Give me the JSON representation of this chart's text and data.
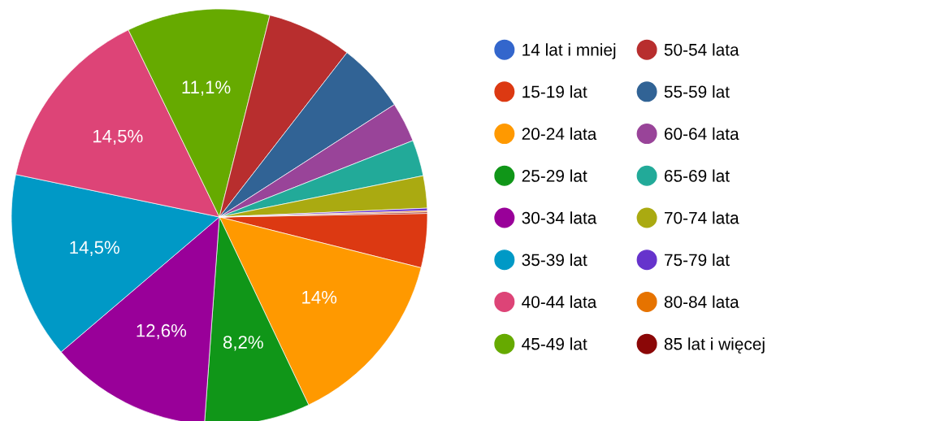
{
  "chart_data": {
    "type": "pie",
    "categories": [
      "14 lat i mniej",
      "15-19 lat",
      "20-24 lata",
      "25-29 lat",
      "30-34 lata",
      "35-39 lat",
      "40-44 lata",
      "45-49 lat",
      "50-54 lata",
      "55-59 lat",
      "60-64 lata",
      "65-69 lat",
      "70-74 lata",
      "75-79 lat",
      "80-84 lata",
      "85 lat i więcej"
    ],
    "values": [
      null,
      4.2,
      14,
      8.2,
      12.6,
      14.5,
      14.5,
      11.1,
      6.6,
      5.4,
      3.1,
      2.8,
      2.5,
      0.2,
      0.1,
      0.1
    ],
    "value_labels": [
      null,
      null,
      "14%",
      "8,2%",
      "12,6%",
      "14,5%",
      "14,5%",
      "11,1%",
      null,
      null,
      null,
      null,
      null,
      null,
      null,
      null
    ],
    "colors": [
      "#3366cc",
      "#dc3912",
      "#ff9900",
      "#109618",
      "#990099",
      "#0099c6",
      "#dd4477",
      "#66aa00",
      "#b82e2e",
      "#316395",
      "#994499",
      "#22aa99",
      "#aaaa11",
      "#6633cc",
      "#e67300",
      "#8b0707"
    ],
    "legend": "right"
  }
}
